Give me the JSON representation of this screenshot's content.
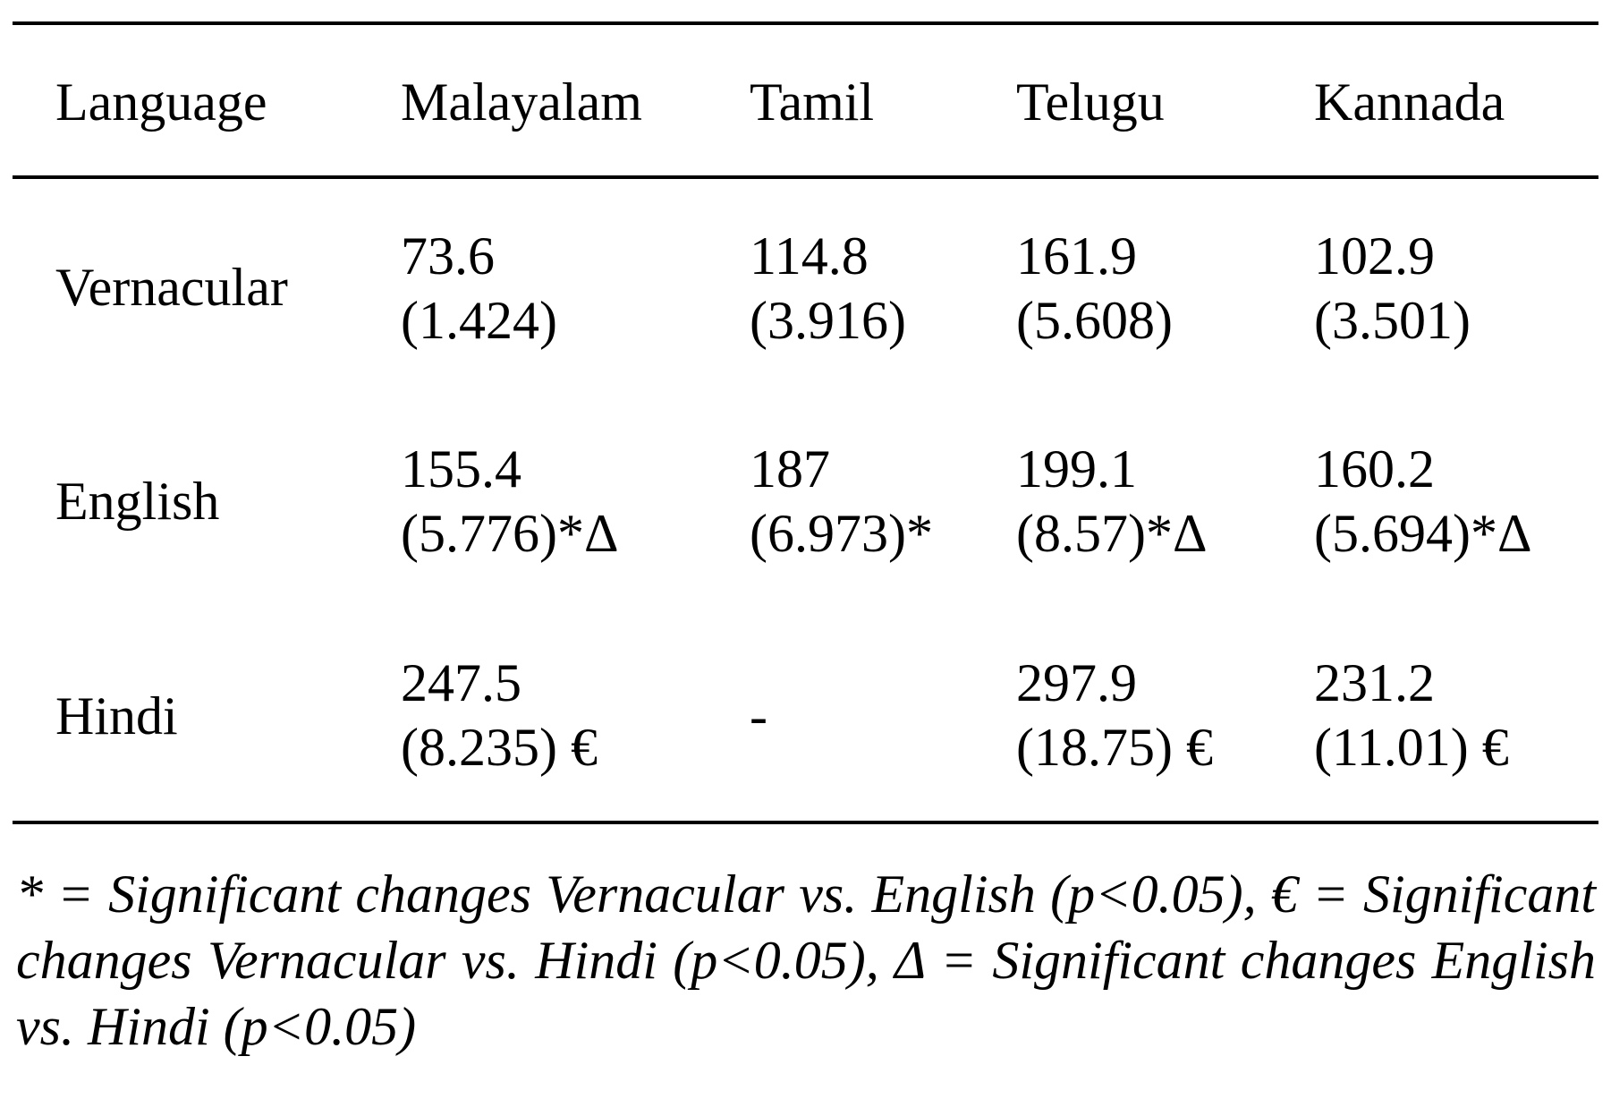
{
  "table": {
    "header": [
      "Language",
      "Malayalam",
      "Tamil",
      "Telugu",
      "Kannada"
    ],
    "rows": [
      {
        "label": "Vernacular",
        "cells": [
          {
            "mean": "73.6",
            "se": "(1.424)"
          },
          {
            "mean": "114.8",
            "se": "(3.916)"
          },
          {
            "mean": "161.9",
            "se": "(5.608)"
          },
          {
            "mean": "102.9",
            "se": "(3.501)"
          }
        ]
      },
      {
        "label": "English",
        "cells": [
          {
            "mean": "155.4",
            "se": "(5.776)*Δ"
          },
          {
            "mean": "187",
            "se": "(6.973)*"
          },
          {
            "mean": "199.1",
            "se": "(8.57)*Δ"
          },
          {
            "mean": "160.2",
            "se": "(5.694)*Δ"
          }
        ]
      },
      {
        "label": "Hindi",
        "cells": [
          {
            "mean": "247.5",
            "se": "(8.235) €"
          },
          {
            "mean": "",
            "se": "",
            "single": "-"
          },
          {
            "mean": "297.9",
            "se": "(18.75) €"
          },
          {
            "mean": "231.2",
            "se": "(11.01) €"
          }
        ]
      }
    ]
  },
  "footnote": "* = Significant changes Vernacular vs. English (p<0.05), € = Significant changes Vernacular vs. Hindi (p<0.05), Δ = Significant changes English vs. Hindi (p<0.05)"
}
